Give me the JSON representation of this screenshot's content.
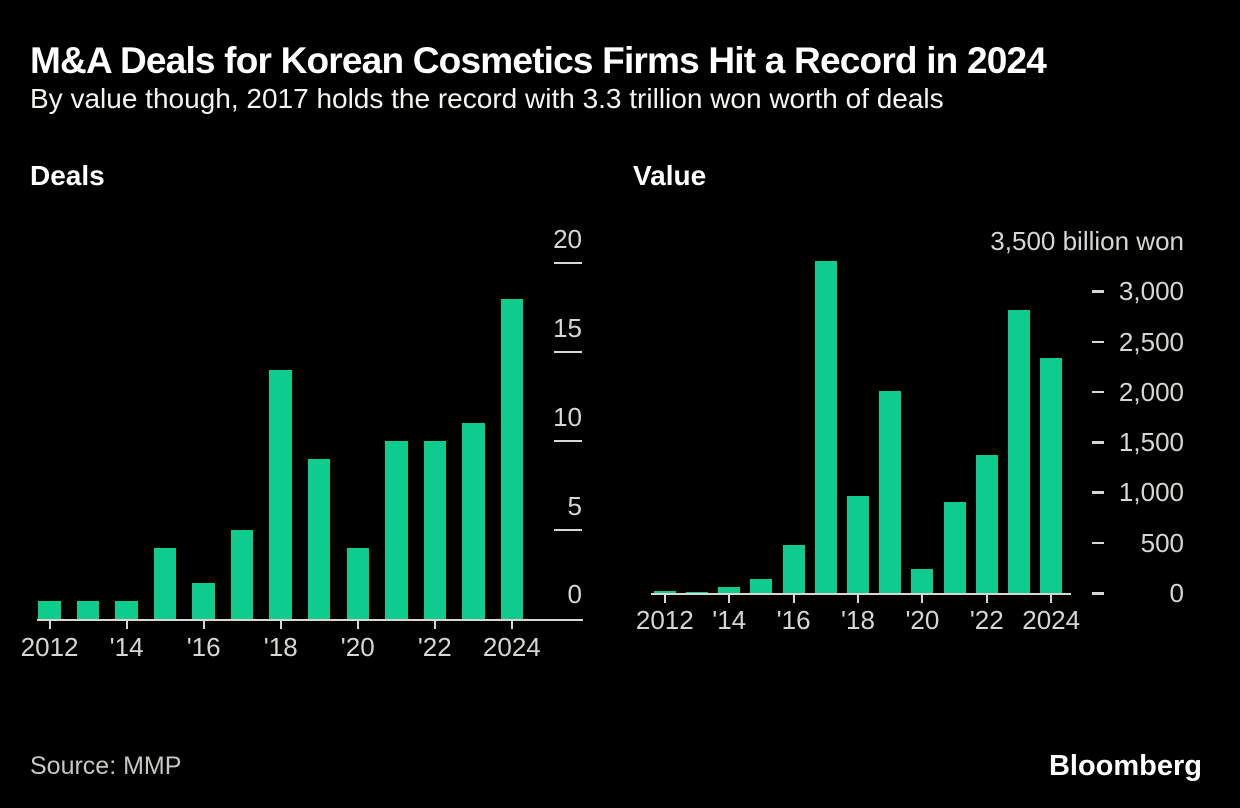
{
  "header": {
    "title": "M&A Deals for Korean Cosmetics Firms Hit a Record in 2024",
    "subtitle": "By value though, 2017 holds the record with 3.3 trillion won worth of deals"
  },
  "footer": {
    "source": "Source: MMP",
    "brand": "Bloomberg"
  },
  "colors": {
    "background": "#000000",
    "bar_green": "#0ecb8e",
    "axis_gray": "#d8d6d2",
    "title_white": "#ffffff"
  },
  "chart_data": [
    {
      "type": "bar",
      "title": "Deals",
      "categories": [
        2012,
        2013,
        2014,
        2015,
        2016,
        2017,
        2018,
        2019,
        2020,
        2021,
        2022,
        2023,
        2024
      ],
      "values": [
        1,
        1,
        1,
        4,
        2,
        5,
        14,
        9,
        4,
        10,
        10,
        11,
        18
      ],
      "x_ticks": [
        {
          "year": 2012,
          "label": "2012"
        },
        {
          "year": 2014,
          "label": "'14"
        },
        {
          "year": 2016,
          "label": "'16"
        },
        {
          "year": 2018,
          "label": "'18"
        },
        {
          "year": 2020,
          "label": "'20"
        },
        {
          "year": 2022,
          "label": "'22"
        },
        {
          "year": 2024,
          "label": "2024"
        }
      ],
      "y_ticks": [
        {
          "value": 0,
          "label": "0"
        },
        {
          "value": 5,
          "label": "5"
        },
        {
          "value": 10,
          "label": "10"
        },
        {
          "value": 15,
          "label": "15"
        },
        {
          "value": 20,
          "label": "20"
        }
      ],
      "ylim": [
        0,
        20
      ],
      "grid": false,
      "legend": "none"
    },
    {
      "type": "bar",
      "title": "Value",
      "y_axis_header": "3,500 billion won",
      "categories": [
        2012,
        2013,
        2014,
        2015,
        2016,
        2017,
        2018,
        2019,
        2020,
        2021,
        2022,
        2023,
        2024
      ],
      "values": [
        15,
        10,
        55,
        140,
        480,
        3300,
        965,
        2010,
        240,
        900,
        1370,
        2810,
        2340
      ],
      "x_ticks": [
        {
          "year": 2012,
          "label": "2012"
        },
        {
          "year": 2014,
          "label": "'14"
        },
        {
          "year": 2016,
          "label": "'16"
        },
        {
          "year": 2018,
          "label": "'18"
        },
        {
          "year": 2020,
          "label": "'20"
        },
        {
          "year": 2022,
          "label": "'22"
        },
        {
          "year": 2024,
          "label": "2024"
        }
      ],
      "y_ticks": [
        {
          "value": 0,
          "label": "0"
        },
        {
          "value": 500,
          "label": "500"
        },
        {
          "value": 1000,
          "label": "1,000"
        },
        {
          "value": 1500,
          "label": "1,500"
        },
        {
          "value": 2000,
          "label": "2,000"
        },
        {
          "value": 2500,
          "label": "2,500"
        },
        {
          "value": 3000,
          "label": "3,000"
        }
      ],
      "ylim": [
        0,
        3500
      ],
      "grid": false,
      "legend": "none"
    }
  ]
}
